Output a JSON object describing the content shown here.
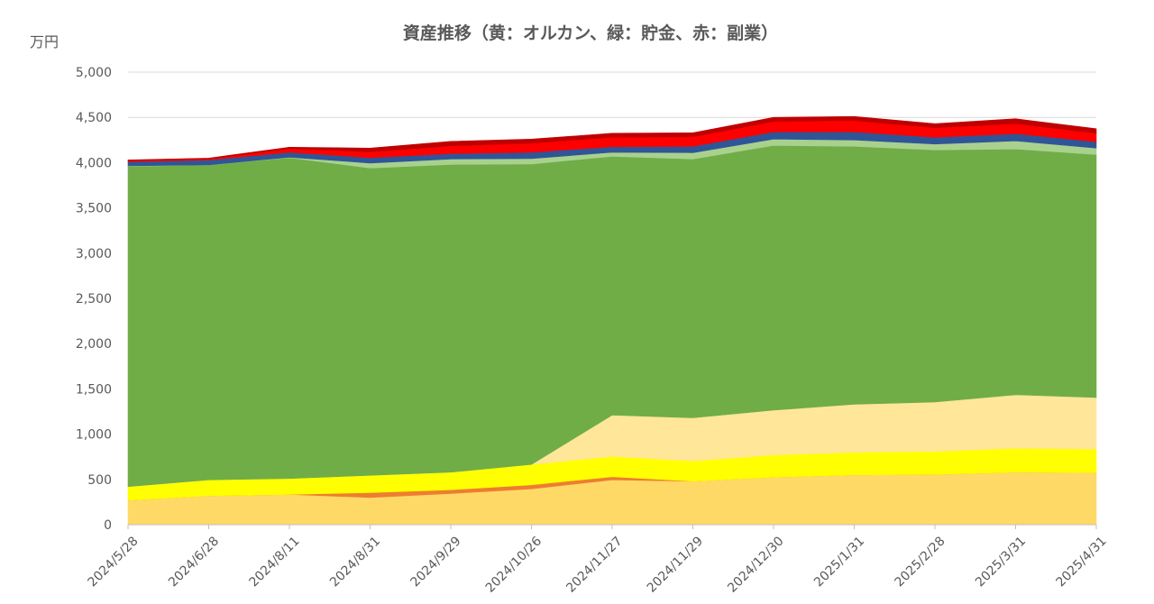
{
  "chart_data": {
    "type": "area",
    "stacked": true,
    "title": "資産推移（黄：オルカン、緑：貯金、赤：副業）",
    "ylabel": "万円",
    "xlabel": "",
    "ylim": [
      0,
      5000
    ],
    "yticks": [
      0,
      500,
      1000,
      1500,
      2000,
      2500,
      3000,
      3500,
      4000,
      4500,
      5000
    ],
    "ytick_labels": [
      "0",
      "500",
      "1,000",
      "1,500",
      "2,000",
      "2,500",
      "3,000",
      "3,500",
      "4,000",
      "4,500",
      "5,000"
    ],
    "grid": true,
    "legend": "none",
    "categories": [
      "2024/5/28",
      "2024/6/28",
      "2024/8/11",
      "2024/8/31",
      "2024/9/29",
      "2024/10/26",
      "2024/11/27",
      "2024/11/29",
      "2024/12/30",
      "2025/1/31",
      "2025/2/28",
      "2025/3/31",
      "2025/4/31"
    ],
    "series": [
      {
        "color": "#ffd966",
        "values": [
          270,
          320,
          335,
          300,
          345,
          395,
          495,
          480,
          525,
          550,
          555,
          580,
          575
        ]
      },
      {
        "color": "#ed7d31",
        "values": [
          0,
          0,
          0,
          55,
          40,
          45,
          35,
          0,
          0,
          0,
          0,
          0,
          0
        ]
      },
      {
        "color": "#ffff00",
        "values": [
          150,
          175,
          175,
          190,
          195,
          225,
          225,
          225,
          245,
          250,
          255,
          265,
          260
        ]
      },
      {
        "color": "#ffe699",
        "values": [
          0,
          0,
          0,
          0,
          0,
          0,
          455,
          475,
          495,
          530,
          545,
          590,
          570
        ]
      },
      {
        "color": "#70ad47",
        "values": [
          3540,
          3480,
          3545,
          3395,
          3400,
          3320,
          2860,
          2860,
          2925,
          2850,
          2785,
          2715,
          2685
        ]
      },
      {
        "color": "#a9d18e",
        "values": [
          5,
          0,
          5,
          55,
          60,
          60,
          45,
          70,
          70,
          70,
          65,
          90,
          70
        ]
      },
      {
        "color": "#2f5597",
        "values": [
          45,
          55,
          55,
          60,
          60,
          70,
          60,
          70,
          80,
          90,
          75,
          80,
          70
        ]
      },
      {
        "color": "#ff0000",
        "values": [
          10,
          10,
          40,
          65,
          85,
          100,
          105,
          105,
          115,
          125,
          105,
          110,
          95
        ]
      },
      {
        "color": "#c00000",
        "values": [
          10,
          10,
          15,
          40,
          50,
          45,
          45,
          45,
          45,
          45,
          45,
          55,
          50
        ]
      }
    ]
  }
}
